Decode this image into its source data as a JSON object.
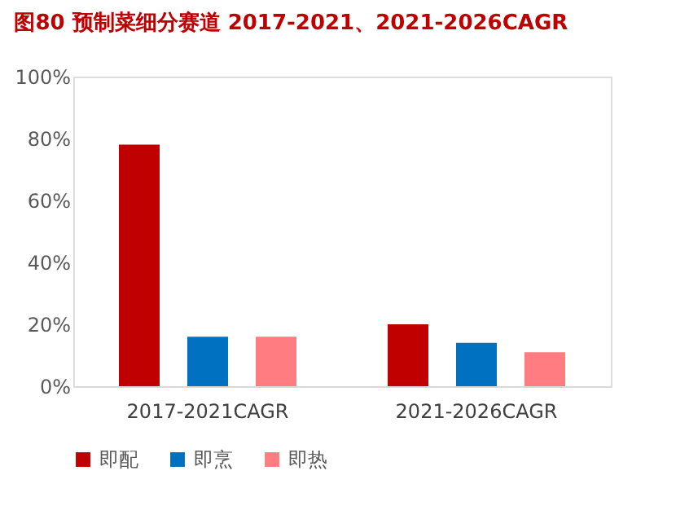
{
  "chart_data": {
    "type": "bar",
    "title": "图80  预制菜细分赛道 2017-2021、2021-2026CAGR",
    "categories": [
      "2017-2021CAGR",
      "2021-2026CAGR"
    ],
    "series": [
      {
        "name": "即配",
        "color": "#c00000",
        "values": [
          78,
          20
        ]
      },
      {
        "name": "即烹",
        "color": "#0070c0",
        "values": [
          16,
          14
        ]
      },
      {
        "name": "即热",
        "color": "#ff7c80",
        "values": [
          16,
          11
        ]
      }
    ],
    "ylim": [
      0,
      100
    ],
    "yticks": [
      {
        "value": 0,
        "label": "0%"
      },
      {
        "value": 20,
        "label": "20%"
      },
      {
        "value": 40,
        "label": "40%"
      },
      {
        "value": 60,
        "label": "60%"
      },
      {
        "value": 80,
        "label": "80%"
      },
      {
        "value": 100,
        "label": "100%"
      }
    ],
    "grid": false,
    "legend": "bottom"
  }
}
